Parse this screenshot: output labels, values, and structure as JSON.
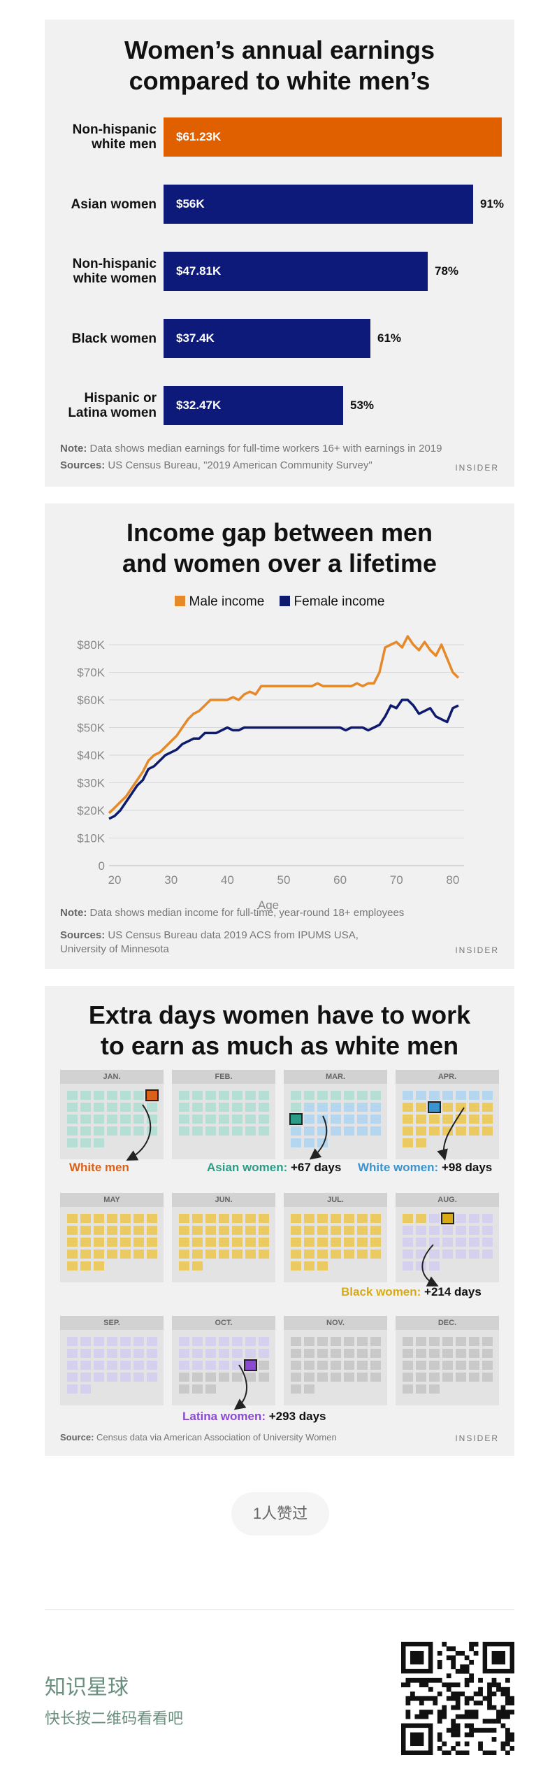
{
  "panel1": {
    "title_line1": "Women’s annual earnings",
    "title_line2": "compared to white men’s",
    "bars": [
      {
        "label1": "Non-hispanic",
        "label2": "white men",
        "value": 61.23,
        "value_label": "$61.23K",
        "pct": "",
        "color": "#e06000"
      },
      {
        "label1": "Asian women",
        "label2": "",
        "value": 56,
        "value_label": "$56K",
        "pct": "91%",
        "color": "#0d1a7a"
      },
      {
        "label1": "Non-hispanic",
        "label2": "white women",
        "value": 47.81,
        "value_label": "$47.81K",
        "pct": "78%",
        "color": "#0d1a7a"
      },
      {
        "label1": "Black women",
        "label2": "",
        "value": 37.4,
        "value_label": "$37.4K",
        "pct": "61%",
        "color": "#0d1a7a"
      },
      {
        "label1": "Hispanic or",
        "label2": "Latina women",
        "value": 32.47,
        "value_label": "$32.47K",
        "pct": "53%",
        "color": "#0d1a7a"
      }
    ],
    "note_label": "Note:",
    "note_text": " Data shows median earnings for full-time workers 16+ with earnings  in 2019",
    "sources_label": "Sources:",
    "sources_text": " US Census Bureau, \"2019 American Community Survey\"",
    "brand": "INSIDER"
  },
  "chart_data": {
    "type": "line",
    "title": "Income gap between men and women over a lifetime",
    "xlabel": "Age",
    "ylabel": "",
    "xlim": [
      19,
      82
    ],
    "ylim": [
      0,
      80
    ],
    "x_ticks": [
      20,
      30,
      40,
      50,
      60,
      70,
      80
    ],
    "y_ticks": [
      0,
      10,
      20,
      30,
      40,
      50,
      60,
      70,
      80
    ],
    "y_tick_labels": [
      "0",
      "$10K",
      "$20K",
      "$30K",
      "$40K",
      "$50K",
      "$60K",
      "$70K",
      "$80K"
    ],
    "legend": "top-center",
    "series": [
      {
        "name": "Male income",
        "color": "#e5892a",
        "x": [
          19,
          20,
          21,
          22,
          23,
          24,
          25,
          26,
          27,
          28,
          29,
          30,
          31,
          32,
          33,
          34,
          35,
          36,
          37,
          38,
          39,
          40,
          41,
          42,
          43,
          44,
          45,
          46,
          47,
          48,
          49,
          50,
          51,
          52,
          53,
          54,
          55,
          56,
          57,
          58,
          59,
          60,
          61,
          62,
          63,
          64,
          65,
          66,
          67,
          68,
          69,
          70,
          71,
          72,
          73,
          74,
          75,
          76,
          77,
          78,
          79,
          80,
          81
        ],
        "y": [
          19,
          21,
          23,
          25,
          28,
          31,
          34,
          38,
          40,
          41,
          43,
          45,
          47,
          50,
          53,
          55,
          56,
          58,
          60,
          60,
          60,
          60,
          61,
          60,
          62,
          63,
          62,
          65,
          65,
          65,
          65,
          65,
          65,
          65,
          65,
          65,
          65,
          66,
          65,
          65,
          65,
          65,
          65,
          65,
          66,
          65,
          66,
          66,
          70,
          79,
          80,
          81,
          79,
          83,
          80,
          78,
          81,
          78,
          76,
          80,
          75,
          70,
          68
        ]
      },
      {
        "name": "Female income",
        "color": "#0d1a6e",
        "x": [
          19,
          20,
          21,
          22,
          23,
          24,
          25,
          26,
          27,
          28,
          29,
          30,
          31,
          32,
          33,
          34,
          35,
          36,
          37,
          38,
          39,
          40,
          41,
          42,
          43,
          44,
          45,
          46,
          47,
          48,
          49,
          50,
          51,
          52,
          53,
          54,
          55,
          56,
          57,
          58,
          59,
          60,
          61,
          62,
          63,
          64,
          65,
          66,
          67,
          68,
          69,
          70,
          71,
          72,
          73,
          74,
          75,
          76,
          77,
          78,
          79,
          80,
          81
        ],
        "y": [
          17,
          18,
          20,
          23,
          26,
          29,
          31,
          35,
          36,
          38,
          40,
          41,
          42,
          44,
          45,
          46,
          46,
          48,
          48,
          48,
          49,
          50,
          49,
          49,
          50,
          50,
          50,
          50,
          50,
          50,
          50,
          50,
          50,
          50,
          50,
          50,
          50,
          50,
          50,
          50,
          50,
          50,
          49,
          50,
          50,
          50,
          49,
          50,
          51,
          54,
          58,
          57,
          60,
          60,
          58,
          55,
          56,
          57,
          54,
          53,
          52,
          57,
          58
        ]
      }
    ]
  },
  "panel2": {
    "title_line1": "Income gap between men",
    "title_line2": "and women over a lifetime",
    "legend_male": "Male income",
    "legend_female": "Female income",
    "note_label": "Note:",
    "note_text": " Data shows median income for full-time, year-round  18+ employees",
    "sources_label": "Sources:",
    "sources_text": " US Census Bureau data 2019 ACS from IPUMS USA,",
    "sources_text2": "University of Minnesota",
    "brand": "INSIDER"
  },
  "panel3": {
    "title_line1": "Extra days women have to work",
    "title_line2": "to earn as much as white men",
    "months": [
      "JAN.",
      "FEB.",
      "MAR.",
      "APR.",
      "MAY",
      "JUN.",
      "JUL.",
      "AUG.",
      "SEP.",
      "OCT.",
      "NOV.",
      "DEC."
    ],
    "colors": {
      "teal": "#b5dfd5",
      "blue": "#b4d6ef",
      "yellow": "#ecca62",
      "lavender": "#d6d0ef",
      "gray": "#c9c9c9",
      "white_men": "#d9611a",
      "asian": "#2d9c87",
      "white_women": "#3a93cf",
      "black": "#d8aa15",
      "latina": "#8a4bd0"
    },
    "callouts": {
      "white_men": "White men",
      "asian_label": "Asian women:",
      "asian_days": " +67 days",
      "white_women_label": "White women:",
      "white_women_days": " +98 days",
      "black_label": "Black women:",
      "black_days": " +214 days",
      "latina_label": "Latina women:",
      "latina_days": " +293 days"
    },
    "source_label": "Source:",
    "source_text": "  Census data via American Association of University Women",
    "brand": "INSIDER"
  },
  "footer": {
    "like_text": "1人赞过",
    "title": "知识星球",
    "subtitle": "快长按二维码看看吧"
  }
}
